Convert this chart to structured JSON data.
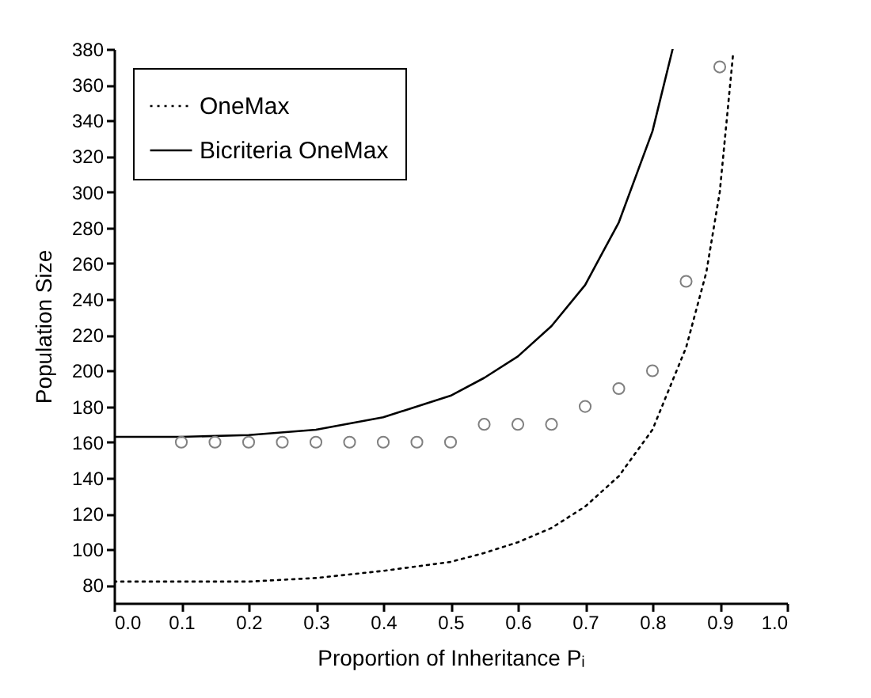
{
  "chart_data": {
    "type": "line",
    "xlabel": "Proportion of Inheritance Pᵢ",
    "ylabel": "Population Size",
    "xlim": [
      0,
      1
    ],
    "xticks": [
      {
        "value": 0,
        "label": "0.0"
      },
      0.1,
      0.2,
      0.3,
      0.4,
      0.5,
      0.6,
      0.7,
      0.8,
      0.9,
      {
        "value": 1,
        "label": "1.0"
      }
    ],
    "ylim": [
      70,
      380
    ],
    "yticks": [
      80,
      100,
      120,
      140,
      160,
      180,
      200,
      220,
      240,
      260,
      280,
      300,
      320,
      340,
      360,
      380
    ],
    "grid": false,
    "legend": "top left",
    "series": [
      {
        "name": "OneMax",
        "color": "#000000",
        "line_style": "dotted",
        "x": [
          0,
          0.1,
          0.2,
          0.3,
          0.4,
          0.5,
          0.55,
          0.6,
          0.65,
          0.7,
          0.75,
          0.8,
          0.85,
          0.88,
          0.9,
          0.92
        ],
        "values": [
          82,
          82,
          82,
          84,
          88,
          93,
          98,
          104,
          112,
          124,
          141,
          167,
          213,
          255,
          300,
          378
        ]
      },
      {
        "name": "Bicriteria OneMax",
        "color": "#000000",
        "line_style": "solid",
        "x": [
          0,
          0.1,
          0.2,
          0.3,
          0.4,
          0.5,
          0.55,
          0.6,
          0.65,
          0.7,
          0.75,
          0.8,
          0.83
        ],
        "values": [
          163,
          163,
          164,
          167,
          174,
          186,
          196,
          208,
          225,
          248,
          283,
          334,
          380
        ]
      },
      {
        "type": "scatter",
        "color": "#808080",
        "marker": "circle",
        "x": [
          0.1,
          0.15,
          0.2,
          0.25,
          0.3,
          0.35,
          0.4,
          0.45,
          0.5,
          0.55,
          0.6,
          0.65,
          0.7,
          0.75,
          0.8,
          0.85,
          0.9
        ],
        "values": [
          160,
          160,
          160,
          160,
          160,
          160,
          160,
          160,
          160,
          170,
          170,
          170,
          180,
          190,
          200,
          250,
          370
        ]
      }
    ]
  }
}
